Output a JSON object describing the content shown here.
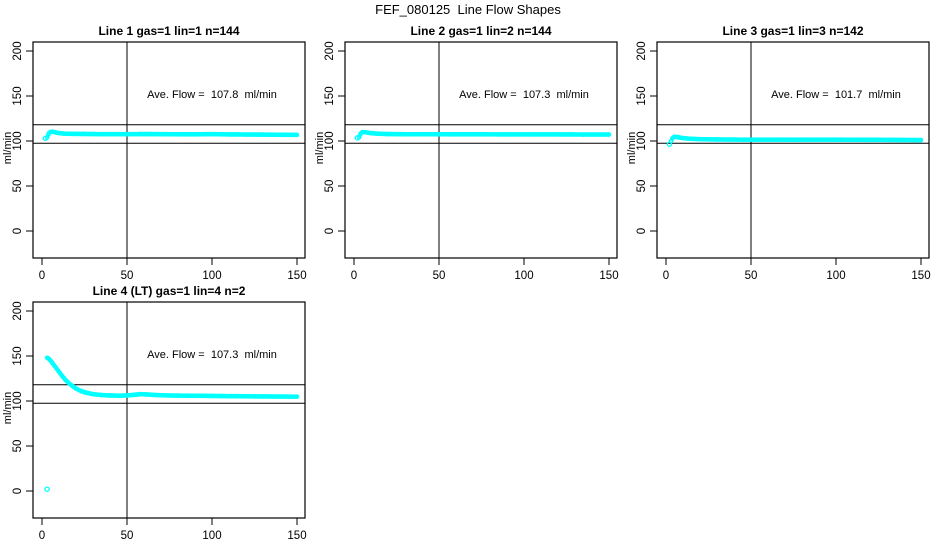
{
  "title": "FEF_080125  Line Flow Shapes",
  "colors": {
    "series": "#00ffff",
    "axis": "#000000",
    "background": "#ffffff"
  },
  "chart_data": [
    {
      "type": "scatter",
      "title": "Line 1 gas=1 lin=1 n=144",
      "annotation": "Ave. Flow =  107.8  ml/min",
      "ylabel": "ml/min",
      "x_ticks": [
        0,
        50,
        100,
        150
      ],
      "y_ticks": [
        0,
        50,
        100,
        150,
        200
      ],
      "xlim": [
        -5.5,
        155
      ],
      "ylim": [
        -30,
        210
      ],
      "ref_lines_h": [
        97.5,
        118
      ],
      "ref_lines_v": [
        50
      ],
      "points": [
        [
          3,
          104
        ],
        [
          4,
          108.5
        ],
        [
          5,
          110
        ],
        [
          6,
          110.3
        ],
        [
          8,
          109.5
        ],
        [
          10,
          108.8
        ],
        [
          13,
          108.2
        ],
        [
          18,
          107.9
        ],
        [
          25,
          107.8
        ],
        [
          35,
          107.6
        ],
        [
          50,
          107.6
        ],
        [
          62,
          107.7
        ],
        [
          75,
          107.5
        ],
        [
          88,
          107.4
        ],
        [
          100,
          107.6
        ],
        [
          110,
          107.3
        ],
        [
          120,
          107.2
        ],
        [
          130,
          107.1
        ],
        [
          140,
          106.9
        ],
        [
          150,
          106.8
        ]
      ],
      "outliers": [
        [
          2,
          103
        ]
      ]
    },
    {
      "type": "scatter",
      "title": "Line 2 gas=1 lin=2 n=144",
      "annotation": "Ave. Flow =  107.3  ml/min",
      "ylabel": "ml/min",
      "x_ticks": [
        0,
        50,
        100,
        150
      ],
      "y_ticks": [
        0,
        50,
        100,
        150,
        200
      ],
      "xlim": [
        -5.5,
        155
      ],
      "ylim": [
        -30,
        210
      ],
      "ref_lines_h": [
        97.5,
        118
      ],
      "ref_lines_v": [
        50
      ],
      "points": [
        [
          3,
          104
        ],
        [
          4,
          108.5
        ],
        [
          5,
          110
        ],
        [
          7,
          109.6
        ],
        [
          10,
          108.7
        ],
        [
          14,
          108.1
        ],
        [
          20,
          107.7
        ],
        [
          30,
          107.5
        ],
        [
          45,
          107.5
        ],
        [
          60,
          107.4
        ],
        [
          75,
          107.4
        ],
        [
          90,
          107.3
        ],
        [
          105,
          107.3
        ],
        [
          120,
          107.3
        ],
        [
          135,
          107.2
        ],
        [
          150,
          107.2
        ]
      ],
      "outliers": [
        [
          2,
          103.5
        ]
      ]
    },
    {
      "type": "scatter",
      "title": "Line 3 gas=1 lin=3 n=142",
      "annotation": "Ave. Flow =  101.7  ml/min",
      "ylabel": "ml/min",
      "x_ticks": [
        0,
        50,
        100,
        150
      ],
      "y_ticks": [
        0,
        50,
        100,
        150,
        200
      ],
      "xlim": [
        -5.5,
        155
      ],
      "ylim": [
        -30,
        210
      ],
      "ref_lines_h": [
        97.5,
        118
      ],
      "ref_lines_v": [
        50
      ],
      "points": [
        [
          3,
          100
        ],
        [
          4,
          103.5
        ],
        [
          5,
          104.8
        ],
        [
          7,
          104.2
        ],
        [
          10,
          103.2
        ],
        [
          14,
          102.5
        ],
        [
          20,
          102
        ],
        [
          30,
          101.7
        ],
        [
          45,
          101.5
        ],
        [
          60,
          101.5
        ],
        [
          75,
          101.4
        ],
        [
          90,
          101.5
        ],
        [
          105,
          101.4
        ],
        [
          120,
          101.3
        ],
        [
          135,
          101.2
        ],
        [
          150,
          101
        ]
      ],
      "outliers": [
        [
          2,
          96.5
        ]
      ]
    },
    {
      "type": "scatter",
      "title": "Line 4 (LT) gas=1 lin=4 n=2",
      "annotation": "Ave. Flow =  107.3  ml/min",
      "ylabel": "ml/min",
      "x_ticks": [
        0,
        50,
        100,
        150
      ],
      "y_ticks": [
        0,
        50,
        100,
        150,
        200
      ],
      "xlim": [
        -5.5,
        155
      ],
      "ylim": [
        -30,
        210
      ],
      "ref_lines_h": [
        97.5,
        118
      ],
      "ref_lines_v": [
        50
      ],
      "points": [
        [
          3,
          148
        ],
        [
          4,
          147
        ],
        [
          5,
          145
        ],
        [
          6,
          142.5
        ],
        [
          8,
          137.5
        ],
        [
          10,
          132.5
        ],
        [
          12,
          127.5
        ],
        [
          14,
          123
        ],
        [
          16,
          119.5
        ],
        [
          18,
          116.5
        ],
        [
          20,
          113.8
        ],
        [
          23,
          111
        ],
        [
          26,
          109.2
        ],
        [
          30,
          107.6
        ],
        [
          35,
          106.6
        ],
        [
          40,
          106.1
        ],
        [
          45,
          105.9
        ],
        [
          50,
          106.2
        ],
        [
          55,
          107
        ],
        [
          58,
          107.6
        ],
        [
          62,
          107.2
        ],
        [
          68,
          106.5
        ],
        [
          75,
          106.1
        ],
        [
          85,
          105.9
        ],
        [
          95,
          105.7
        ],
        [
          105,
          105.5
        ],
        [
          115,
          105.3
        ],
        [
          125,
          105.1
        ],
        [
          135,
          105
        ],
        [
          150,
          104.8
        ]
      ],
      "outliers": [
        [
          3,
          2
        ]
      ]
    }
  ]
}
